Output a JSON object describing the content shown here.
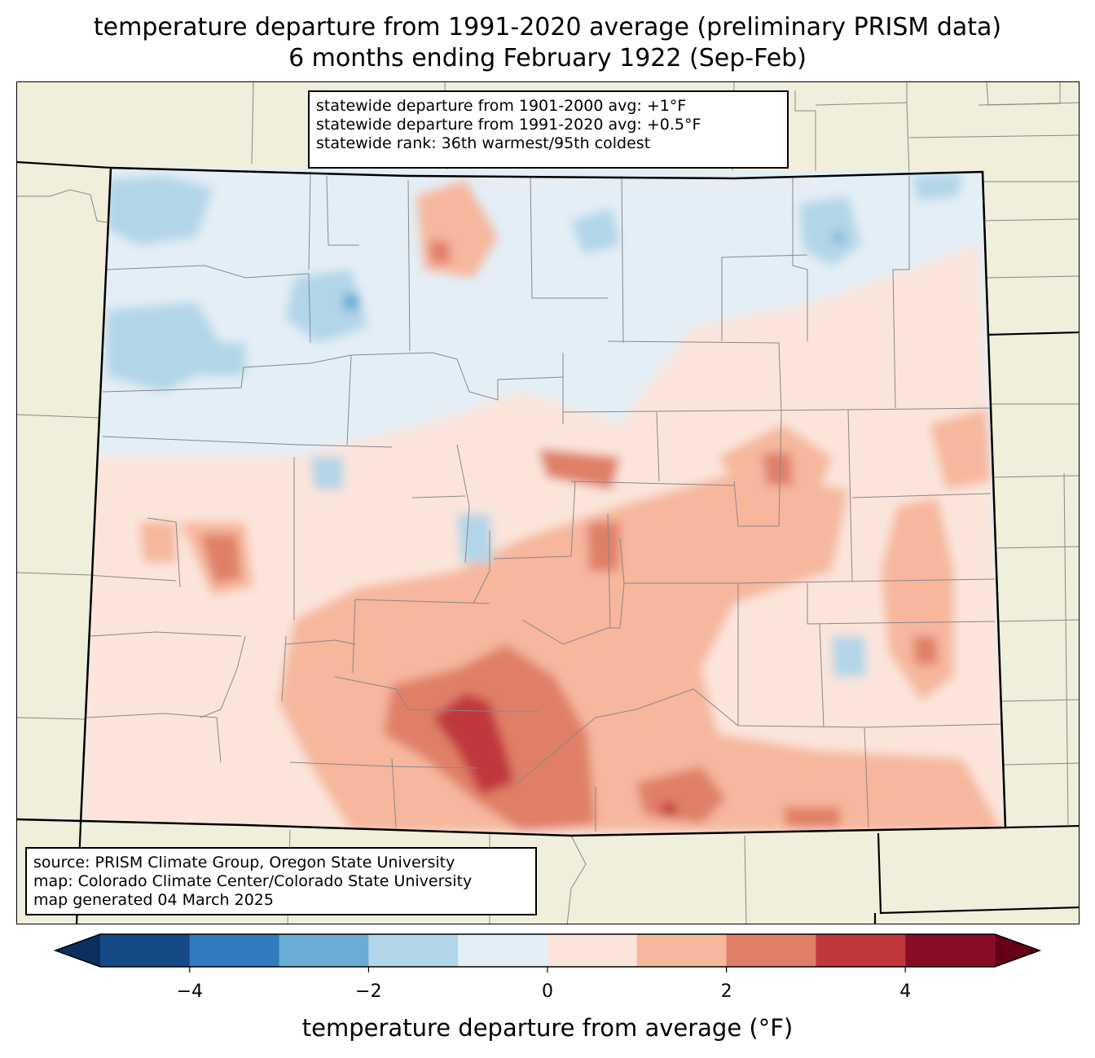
{
  "title_line1": "temperature departure from 1991-2020 average (preliminary PRISM data)",
  "title_line2": "6 months ending February 1922 (Sep-Feb)",
  "stats": [
    "statewide departure from 1901-2000 avg: +1°F",
    "statewide departure from 1991-2020 avg: +0.5°F",
    "statewide rank: 36th warmest/95th coldest"
  ],
  "credits": [
    "source: PRISM Climate Group, Oregon State University",
    "map: Colorado Climate Center/Colorado State University",
    "map generated 04 March 2025"
  ],
  "colorbar": {
    "label": "temperature departure from average (°F)",
    "min": -5,
    "max": 5,
    "bins": [
      {
        "from": -5,
        "to": -4,
        "color": "#164a87"
      },
      {
        "from": -4,
        "to": -3,
        "color": "#2f7bbd"
      },
      {
        "from": -3,
        "to": -2,
        "color": "#6aadd4"
      },
      {
        "from": -2,
        "to": -1,
        "color": "#b2d5e8"
      },
      {
        "from": -1,
        "to": 0,
        "color": "#e4eef6"
      },
      {
        "from": 0,
        "to": 1,
        "color": "#fbe5db"
      },
      {
        "from": 1,
        "to": 2,
        "color": "#f6b79d"
      },
      {
        "from": 2,
        "to": 3,
        "color": "#e07f67"
      },
      {
        "from": 3,
        "to": 4,
        "color": "#c0383c"
      },
      {
        "from": 4,
        "to": 5,
        "color": "#880d24"
      }
    ],
    "under_color": "#0b305f",
    "over_color": "#650017",
    "tick_values": [
      -4,
      -2,
      0,
      2,
      4
    ],
    "tick_labels": [
      "−4",
      "−2",
      "0",
      "2",
      "4"
    ]
  },
  "map": {
    "background_color": "#efefdb",
    "county_line_color": "#888888",
    "state_line_color": "#000000"
  }
}
